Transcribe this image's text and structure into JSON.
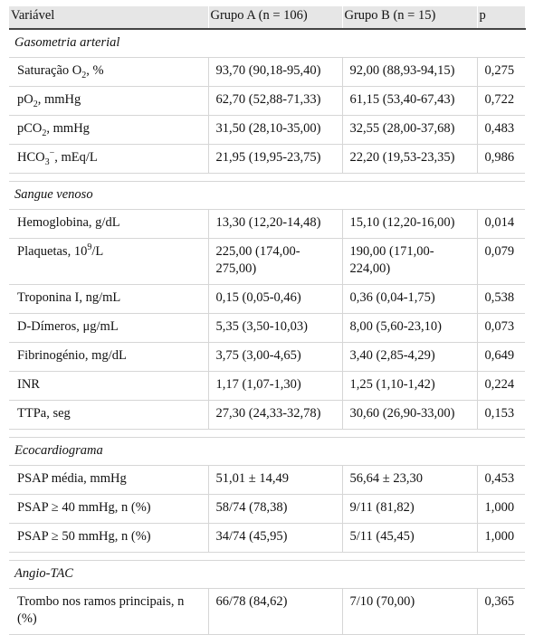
{
  "header": {
    "col_variable": "Variável",
    "col_group_a": "Grupo A (n = 106)",
    "col_group_b": "Grupo B (n = 15)",
    "col_p": "p"
  },
  "sections": {
    "gasometria": "Gasometria arterial",
    "sangue": "Sangue venoso",
    "eco": "Ecocardiograma",
    "angio": "Angio-TAC"
  },
  "rows": {
    "sat_o2": {
      "label_pre": "Saturação O",
      "label_sub": "2",
      "label_post": ", %",
      "a": "93,70 (90,18-95,40)",
      "b": "92,00 (88,93-94,15)",
      "p": "0,275"
    },
    "po2": {
      "label_pre": "pO",
      "label_sub": "2",
      "label_post": ", mmHg",
      "a": "62,70 (52,88-71,33)",
      "b": "61,15 (53,40-67,43)",
      "p": "0,722"
    },
    "pco2": {
      "label_pre": "pCO",
      "label_sub": "2",
      "label_post": ", mmHg",
      "a": "31,50 (28,10-35,00)",
      "b": "32,55 (28,00-37,68)",
      "p": "0,483"
    },
    "hco3": {
      "label_pre": "HCO",
      "label_sub": "3",
      "label_sup": "−",
      "label_post": ", mEq/L",
      "a": "21,95 (19,95-23,75)",
      "b": "22,20 (19,53-23,35)",
      "p": "0,986"
    },
    "hemoglobina": {
      "label": "Hemoglobina, g/dL",
      "a": "13,30 (12,20-14,48)",
      "b": "15,10 (12,20-16,00)",
      "p": "0,014"
    },
    "plaquetas": {
      "label_pre": "Plaquetas, 10",
      "label_sup": "9",
      "label_post": "/L",
      "a": "225,00 (174,00-275,00)",
      "b": "190,00 (171,00-224,00)",
      "p": "0,079"
    },
    "troponina": {
      "label": "Troponina I, ng/mL",
      "a": "0,15 (0,05-0,46)",
      "b": "0,36 (0,04-1,75)",
      "p": "0,538"
    },
    "ddimeros": {
      "label": "D-Dímeros, μg/mL",
      "a": "5,35 (3,50-10,03)",
      "b": "8,00 (5,60-23,10)",
      "p": "0,073"
    },
    "fibrinogenio": {
      "label": "Fibrinogénio, mg/dL",
      "a": "3,75 (3,00-4,65)",
      "b": "3,40 (2,85-4,29)",
      "p": "0,649"
    },
    "inr": {
      "label": "INR",
      "a": "1,17 (1,07-1,30)",
      "b": "1,25 (1,10-1,42)",
      "p": "0,224"
    },
    "ttpa": {
      "label": "TTPa, seg",
      "a": "27,30 (24,33-32,78)",
      "b": "30,60 (26,90-33,00)",
      "p": "0,153"
    },
    "psap_media": {
      "label": "PSAP média, mmHg",
      "a": "51,01 ± 14,49",
      "b": "56,64 ± 23,30",
      "p": "0,453"
    },
    "psap40": {
      "label": "PSAP ≥ 40 mmHg, n (%)",
      "a": "58/74 (78,38)",
      "b": "9/11 (81,82)",
      "p": "1,000"
    },
    "psap50": {
      "label": "PSAP ≥ 50 mmHg, n (%)",
      "a": "34/74 (45,95)",
      "b": "5/11 (45,45)",
      "p": "1,000"
    },
    "trombo": {
      "label": "Trombo nos ramos principais, n (%)",
      "a": "66/78 (84,62)",
      "b": "7/10 (70,00)",
      "p": "0,365"
    }
  }
}
